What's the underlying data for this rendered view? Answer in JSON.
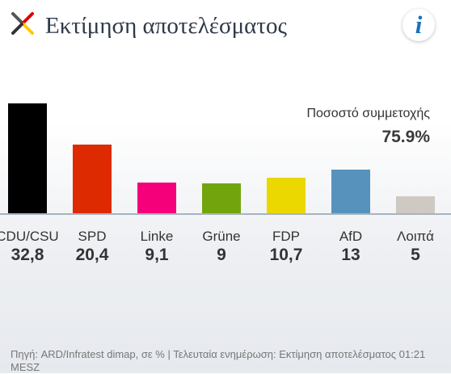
{
  "header": {
    "title": "Εκτίμηση αποτελέσματος",
    "info_icon": "i",
    "logo_colors": [
      "#555555",
      "#dd0000",
      "#ffcc00",
      "#333333"
    ]
  },
  "turnout": {
    "label": "Ποσοστό συμμετοχής",
    "value": "75.9%"
  },
  "chart_data": {
    "type": "bar",
    "categories": [
      "CDU/CSU",
      "SPD",
      "Linke",
      "Grüne",
      "FDP",
      "AfD",
      "Λοιπά"
    ],
    "values": [
      32.8,
      20.4,
      9.1,
      9,
      10.7,
      13,
      5
    ],
    "value_labels": [
      "32,8",
      "20,4",
      "9,1",
      "9",
      "10,7",
      "13",
      "5"
    ],
    "colors": [
      "#000000",
      "#dd2a00",
      "#f5007a",
      "#72a50d",
      "#ead800",
      "#5792bd",
      "#cfc9c3"
    ],
    "ylim": [
      0,
      33
    ],
    "title": "",
    "xlabel": "",
    "ylabel": ""
  },
  "footer": {
    "source": "Πηγή: ARD/Infratest dimap, σε % | Τελευταία ενημέρωση: Εκτίμηση αποτελέσματος 01:21 MESZ"
  }
}
